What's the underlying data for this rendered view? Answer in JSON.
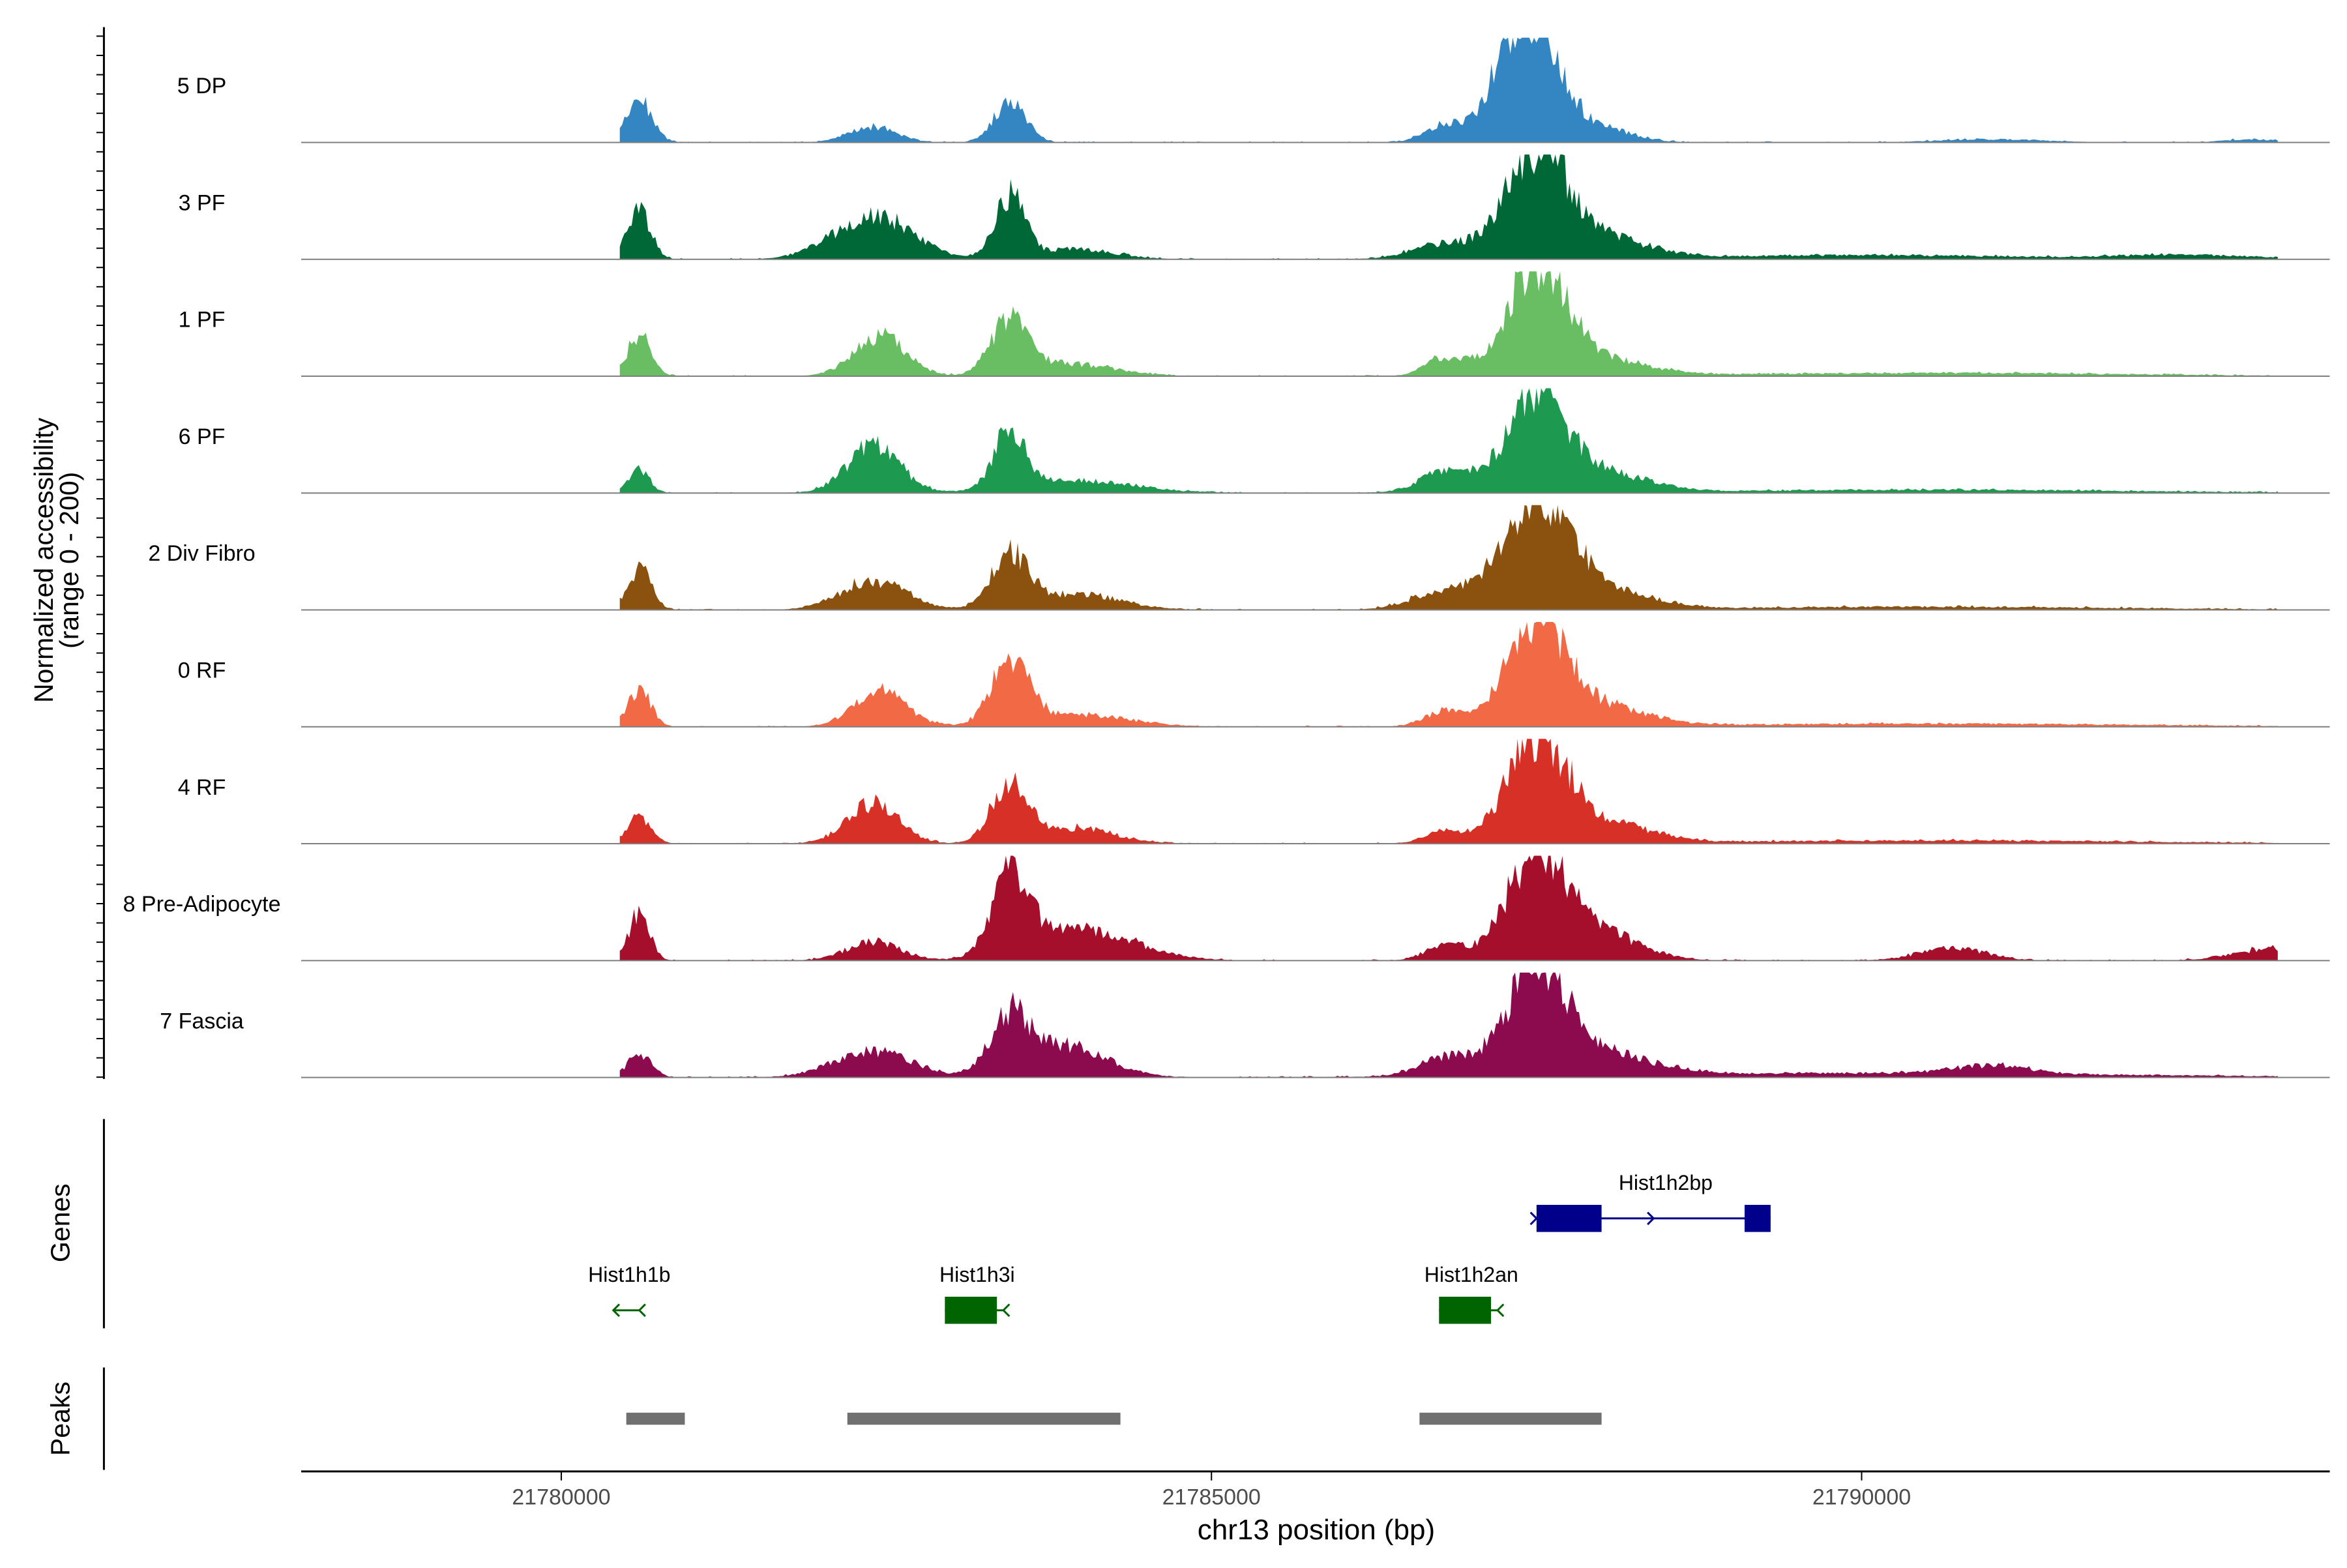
{
  "chart_data": {
    "type": "area",
    "title": "",
    "xlabel": "chr13 position (bp)",
    "ylabel": "Normalized accessibility\n(range 0 - 200)",
    "y_range": [
      0,
      200
    ],
    "x_range": [
      21778000,
      21793600
    ],
    "x_ticks": [
      21780000,
      21785000,
      21790000
    ],
    "x_tick_labels": [
      "21780000",
      "21785000",
      "21790000"
    ],
    "tracks": [
      {
        "name": "5 DP",
        "color": "#3486C2",
        "peaks": [
          [
            21780600,
            0.4,
            100
          ],
          [
            21782400,
            0.15,
            180
          ],
          [
            21783450,
            0.4,
            120
          ],
          [
            21786800,
            0.18,
            150
          ],
          [
            21787500,
            1.0,
            190
          ],
          [
            21787250,
            0.55,
            150
          ],
          [
            21787950,
            0.15,
            250
          ],
          [
            21791000,
            0.03,
            400
          ],
          [
            21793000,
            0.03,
            200
          ]
        ]
      },
      {
        "name": "3 PF",
        "color": "#006837",
        "peaks": [
          [
            21780600,
            0.45,
            90
          ],
          [
            21782400,
            0.42,
            300
          ],
          [
            21783450,
            0.6,
            110
          ],
          [
            21783950,
            0.1,
            300
          ],
          [
            21786800,
            0.15,
            250
          ],
          [
            21787500,
            1.0,
            230
          ],
          [
            21788000,
            0.2,
            350
          ],
          [
            21790000,
            0.04,
            1200
          ],
          [
            21792500,
            0.04,
            500
          ]
        ]
      },
      {
        "name": "1 PF",
        "color": "#69BE63",
        "peaks": [
          [
            21780600,
            0.4,
            90
          ],
          [
            21782450,
            0.38,
            200
          ],
          [
            21783450,
            0.52,
            140
          ],
          [
            21783900,
            0.12,
            350
          ],
          [
            21786800,
            0.18,
            150
          ],
          [
            21787500,
            1.0,
            230
          ],
          [
            21788000,
            0.15,
            350
          ],
          [
            21790500,
            0.03,
            1500
          ]
        ]
      },
      {
        "name": "6 PF",
        "color": "#1E9A50",
        "peaks": [
          [
            21780600,
            0.22,
            80
          ],
          [
            21782400,
            0.45,
            200
          ],
          [
            21783450,
            0.55,
            120
          ],
          [
            21783950,
            0.12,
            450
          ],
          [
            21786800,
            0.2,
            200
          ],
          [
            21787500,
            0.88,
            230
          ],
          [
            21788000,
            0.18,
            350
          ],
          [
            21790500,
            0.03,
            1600
          ]
        ]
      },
      {
        "name": "2 Div Fibro",
        "color": "#8B510E",
        "peaks": [
          [
            21780600,
            0.4,
            90
          ],
          [
            21782400,
            0.28,
            250
          ],
          [
            21783450,
            0.5,
            140
          ],
          [
            21783950,
            0.15,
            350
          ],
          [
            21786800,
            0.18,
            250
          ],
          [
            21787500,
            1.0,
            250
          ],
          [
            21788000,
            0.2,
            350
          ],
          [
            21790500,
            0.03,
            1500
          ]
        ]
      },
      {
        "name": "0 RF",
        "color": "#F26A45",
        "peaks": [
          [
            21780600,
            0.35,
            90
          ],
          [
            21782450,
            0.35,
            200
          ],
          [
            21783450,
            0.6,
            140
          ],
          [
            21783950,
            0.12,
            400
          ],
          [
            21786800,
            0.15,
            150
          ],
          [
            21787500,
            0.95,
            230
          ],
          [
            21788000,
            0.18,
            350
          ],
          [
            21790500,
            0.03,
            1600
          ]
        ]
      },
      {
        "name": "4 RF",
        "color": "#D73027",
        "peaks": [
          [
            21780600,
            0.25,
            90
          ],
          [
            21782400,
            0.38,
            200
          ],
          [
            21783450,
            0.55,
            140
          ],
          [
            21783950,
            0.15,
            300
          ],
          [
            21786800,
            0.12,
            150
          ],
          [
            21787500,
            0.95,
            230
          ],
          [
            21788000,
            0.2,
            350
          ],
          [
            21790500,
            0.03,
            1600
          ]
        ]
      },
      {
        "name": "8 Pre-Adipocyte",
        "color": "#A50F2B",
        "peaks": [
          [
            21780600,
            0.45,
            80
          ],
          [
            21782400,
            0.18,
            200
          ],
          [
            21783450,
            0.78,
            140
          ],
          [
            21784000,
            0.3,
            400
          ],
          [
            21786800,
            0.15,
            150
          ],
          [
            21787500,
            1.0,
            230
          ],
          [
            21788000,
            0.25,
            300
          ],
          [
            21790700,
            0.12,
            250
          ],
          [
            21793200,
            0.12,
            300
          ]
        ]
      },
      {
        "name": "7 Fascia",
        "color": "#8C0A4E",
        "peaks": [
          [
            21780600,
            0.22,
            90
          ],
          [
            21782400,
            0.25,
            300
          ],
          [
            21783450,
            0.55,
            150
          ],
          [
            21783900,
            0.3,
            300
          ],
          [
            21786800,
            0.18,
            200
          ],
          [
            21787500,
            1.0,
            230
          ],
          [
            21788000,
            0.2,
            400
          ],
          [
            21791000,
            0.08,
            300
          ],
          [
            21790000,
            0.04,
            2000
          ]
        ]
      }
    ],
    "genes": {
      "label": "Genes",
      "items": [
        {
          "name": "Hist1h2bp",
          "strand": "+",
          "start": 21787500,
          "end": 21789300,
          "color": "#00008B",
          "row": 1,
          "exons": [
            [
              21787500,
              21788000
            ],
            [
              21789100,
              21789300
            ]
          ]
        },
        {
          "name": "Hist1h1b",
          "strand": "-",
          "start": 21780400,
          "end": 21780600,
          "color": "#006400",
          "row": 2,
          "exons": []
        },
        {
          "name": "Hist1h3i",
          "strand": "-",
          "start": 21782950,
          "end": 21783400,
          "color": "#006400",
          "row": 2,
          "exons": [
            [
              21782950,
              21783350
            ]
          ]
        },
        {
          "name": "Hist1h2an",
          "strand": "-",
          "start": 21786750,
          "end": 21787200,
          "color": "#006400",
          "row": 2,
          "exons": [
            [
              21786750,
              21787150
            ]
          ]
        }
      ]
    },
    "peaks_track": {
      "label": "Peaks",
      "color": "#707070",
      "regions": [
        [
          21780500,
          21780950
        ],
        [
          21782200,
          21784300
        ],
        [
          21786600,
          21788000
        ]
      ]
    }
  }
}
